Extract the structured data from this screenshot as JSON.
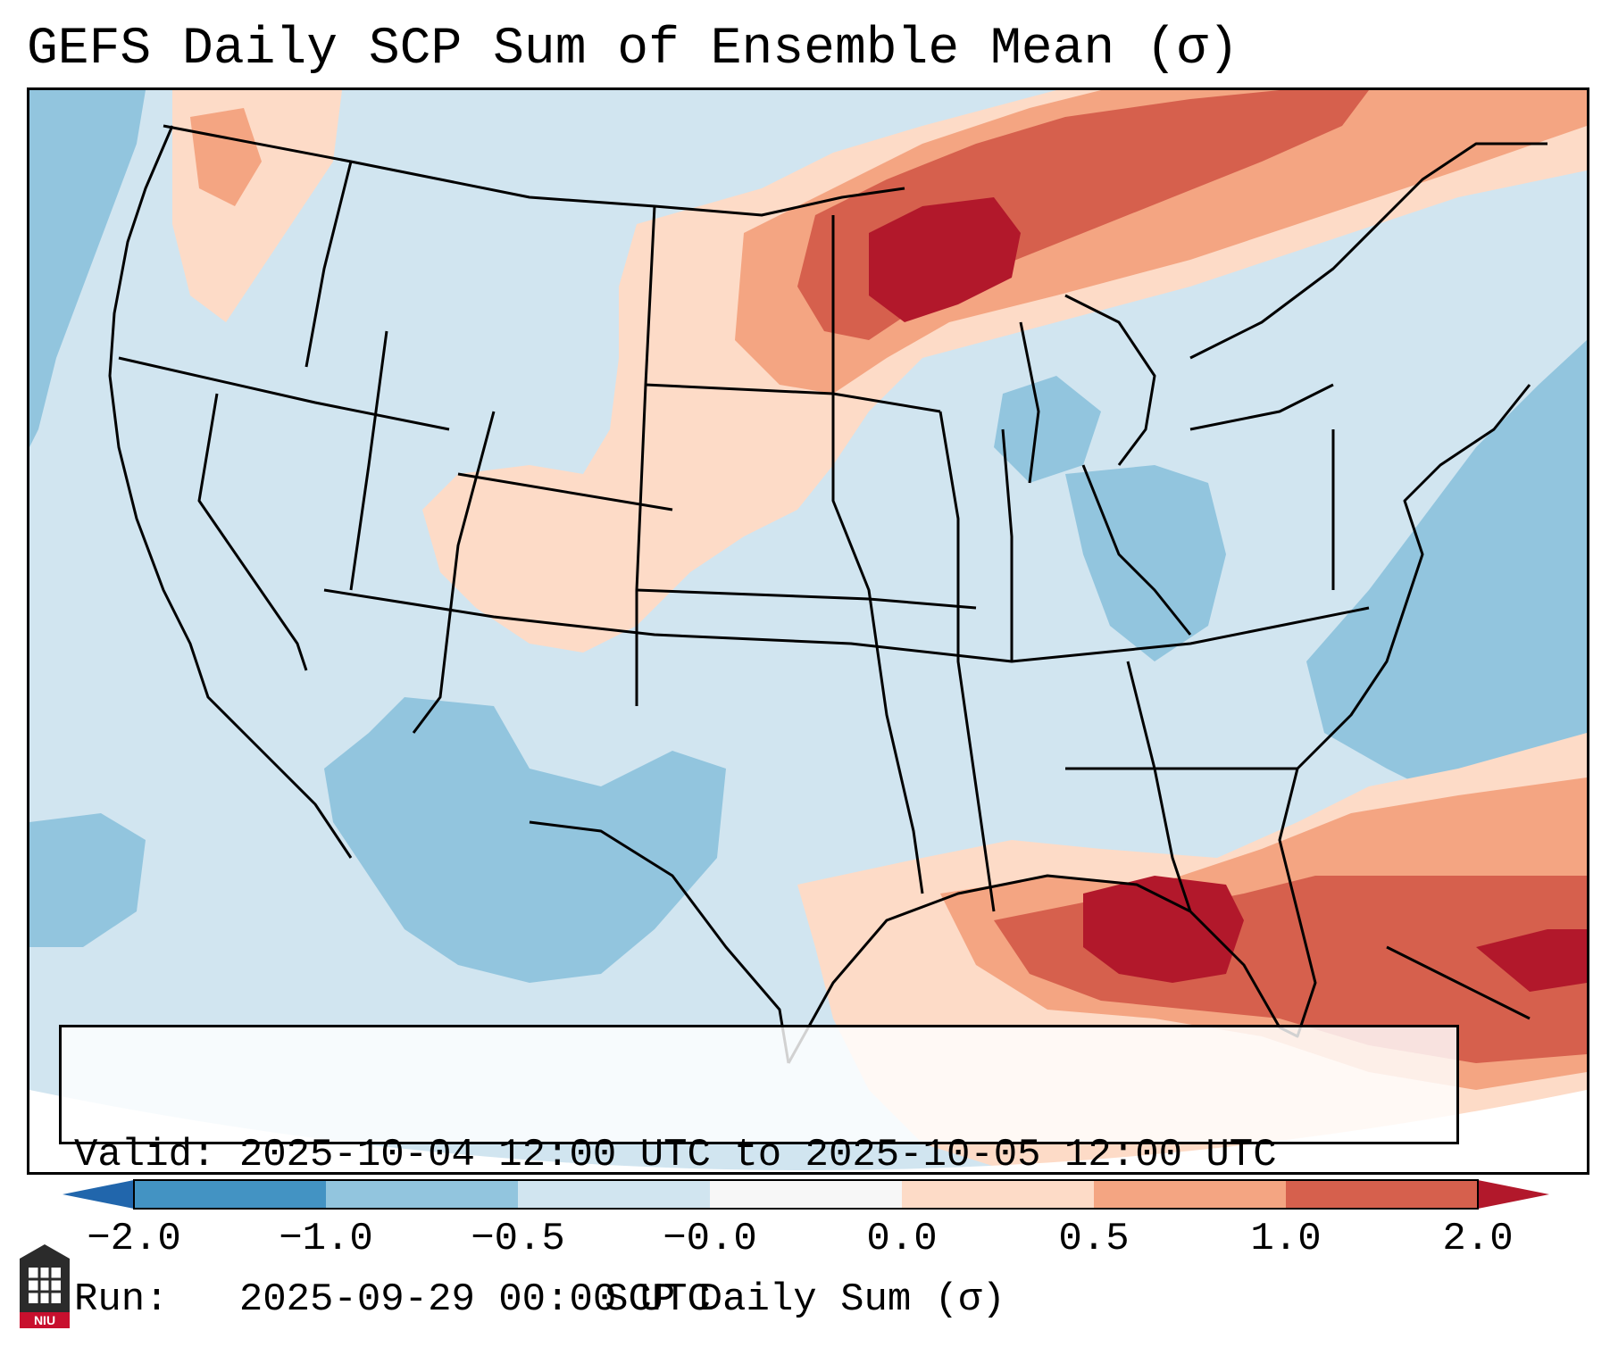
{
  "title": "GEFS Daily SCP Sum of Ensemble Mean (σ)",
  "info": {
    "valid_line": "Valid: 2025-10-04 12:00 UTC to 2025-10-05 12:00 UTC",
    "run_line": "Run:   2025-09-29 00:00 UTC"
  },
  "colorbar": {
    "title": "SCP Daily Sum (σ)",
    "tick_labels": [
      "−2.0",
      "−1.0",
      "−0.5",
      "−0.0",
      "0.0",
      "0.5",
      "1.0",
      "2.0"
    ],
    "bins": [
      {
        "range": "< −2.0",
        "color": "#2166ac"
      },
      {
        "range": "−2.0 to −1.0",
        "color": "#4393c3"
      },
      {
        "range": "−1.0 to −0.5",
        "color": "#92c5de"
      },
      {
        "range": "−0.5 to −0.0",
        "color": "#d1e5f0"
      },
      {
        "range": "−0.0 to 0.0",
        "color": "#f7f7f7"
      },
      {
        "range": "0.0 to 0.5",
        "color": "#fddbc7"
      },
      {
        "range": "0.5 to 1.0",
        "color": "#f4a582"
      },
      {
        "range": "1.0 to 2.0",
        "color": "#d6604d"
      },
      {
        "range": "> 2.0",
        "color": "#b2182b"
      }
    ]
  },
  "field_regions": [
    {
      "region": "Northern Minnesota / Lake Superior / Ontario",
      "level": "> 2.0"
    },
    {
      "region": "Upper Midwest / southern Canada",
      "level": "0.5 to 2.0"
    },
    {
      "region": "Northern and Central Plains",
      "level": "0.0 to 0.5"
    },
    {
      "region": "Eastern Gulf of Mexico",
      "level": "> 2.0"
    },
    {
      "region": "Western Atlantic / Bahamas",
      "level": "1.0 to 2.0"
    },
    {
      "region": "Pacific Northwest",
      "level": "0.0 to 1.0"
    },
    {
      "region": "Southwest US / Northern Mexico",
      "level": "−1.0 to −0.5"
    },
    {
      "region": "Western Atlantic off East Coast",
      "level": "−1.0 to −0.5"
    }
  ],
  "logo_text": "NIU",
  "colors": {
    "background": "#ffffff",
    "border": "#000000"
  }
}
